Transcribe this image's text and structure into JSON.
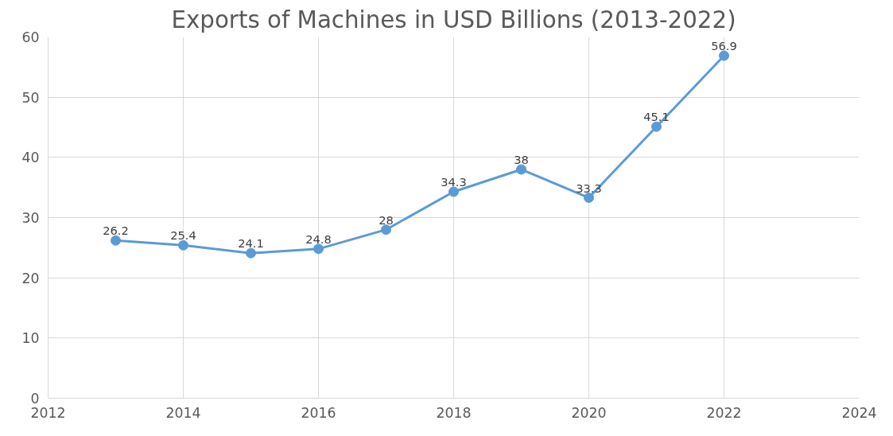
{
  "chart_data": {
    "type": "line",
    "title": "Exports of Machines in USD Billions (2013-2022)",
    "x": [
      2013,
      2014,
      2015,
      2016,
      2017,
      2018,
      2019,
      2020,
      2021,
      2022
    ],
    "series": [
      {
        "color": "#5b9bd5",
        "values": [
          26.2,
          25.4,
          24.1,
          24.8,
          28,
          34.3,
          38,
          33.3,
          45.1,
          56.9
        ]
      }
    ],
    "xlim": [
      2012,
      2024
    ],
    "xticks": [
      2012,
      2014,
      2016,
      2018,
      2020,
      2022,
      2024
    ],
    "ylim": [
      0,
      60
    ],
    "yticks": [
      0,
      10,
      20,
      30,
      40,
      50,
      60
    ],
    "grid": true,
    "marker": "circle",
    "line_style": "solid",
    "data_labels": true
  }
}
